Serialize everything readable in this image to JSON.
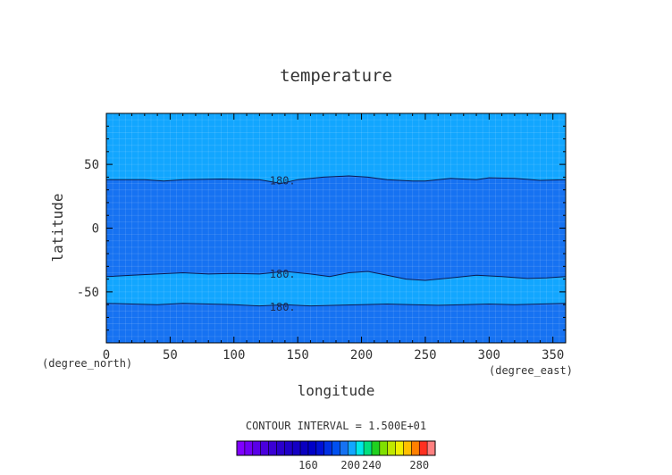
{
  "chart_data": {
    "type": "heatmap",
    "title": "temperature",
    "xlabel": "longitude",
    "ylabel": "latitude",
    "x_unit": "(degree_east)",
    "y_unit": "(degree_north)",
    "xlim": [
      0,
      360
    ],
    "ylim": [
      -90,
      90
    ],
    "x_ticks": [
      "0",
      "50",
      "100",
      "150",
      "200",
      "250",
      "300",
      "350"
    ],
    "y_ticks": [
      "50",
      "0",
      "-50"
    ],
    "x_tick_values": [
      0,
      50,
      100,
      150,
      200,
      250,
      300,
      350
    ],
    "y_tick_values": [
      50,
      0,
      -50
    ],
    "grid": true,
    "contour_interval_text": "CONTOUR INTERVAL = 1.500E+01",
    "contour_label": "180.",
    "bands": [
      {
        "from": "north_edge",
        "to": "contour_north",
        "color": "#12a6ff",
        "range": "195-210"
      },
      {
        "from": "contour_north",
        "to": "contour_mid",
        "color": "#1672f2",
        "range": "180-195"
      },
      {
        "from": "contour_mid",
        "to": "contour_south",
        "color": "#12a6ff",
        "range": "195-210"
      },
      {
        "from": "contour_south",
        "to": "south_edge",
        "color": "#1672f2",
        "range": "180-195"
      }
    ],
    "contours": [
      {
        "name": "contour_north",
        "level": 180,
        "lon": [
          0,
          30,
          45,
          60,
          90,
          120,
          137,
          150,
          170,
          190,
          205,
          220,
          240,
          250,
          270,
          290,
          300,
          320,
          340,
          360
        ],
        "lat": [
          38,
          38,
          37,
          38,
          38.5,
          38,
          35,
          38,
          40,
          41,
          40,
          38,
          37,
          37,
          39,
          38,
          39.5,
          39,
          37.5,
          38
        ]
      },
      {
        "name": "contour_mid",
        "level": 180,
        "lon": [
          0,
          20,
          40,
          60,
          80,
          100,
          120,
          140,
          160,
          175,
          190,
          205,
          220,
          235,
          250,
          270,
          290,
          310,
          330,
          345,
          360
        ],
        "lat": [
          -38,
          -37,
          -36,
          -35,
          -36,
          -35.5,
          -36,
          -34,
          -36,
          -38,
          -35,
          -34,
          -37,
          -40,
          -41,
          -39,
          -37,
          -38,
          -39.5,
          -39,
          -38
        ]
      },
      {
        "name": "contour_south",
        "level": 180,
        "lon": [
          0,
          20,
          40,
          60,
          80,
          100,
          120,
          140,
          160,
          180,
          200,
          220,
          240,
          260,
          280,
          300,
          320,
          340,
          360
        ],
        "lat": [
          -59,
          -59.5,
          -60,
          -59,
          -59.5,
          -60,
          -61,
          -60,
          -61,
          -60.5,
          -60,
          -59.5,
          -60,
          -60.5,
          -60,
          -59.5,
          -60,
          -59.5,
          -59
        ]
      }
    ],
    "contour_labels_at": [
      {
        "lon": 128,
        "lat": 37
      },
      {
        "lon": 128,
        "lat": -36
      },
      {
        "lon": 128,
        "lat": -62
      }
    ],
    "colorbar": {
      "ticks": [
        "160",
        "200",
        "240",
        "280"
      ],
      "tick_values": [
        160,
        200,
        240,
        280
      ],
      "min": 137.5,
      "max": 295,
      "boundaries": [
        137.5,
        140,
        142.5,
        145,
        147.5,
        150,
        152.5,
        155,
        157.5,
        160,
        165,
        170,
        175,
        180,
        195,
        210,
        225,
        240,
        250,
        260,
        265,
        270,
        275,
        280,
        285,
        295
      ],
      "colors": [
        "#8000ff",
        "#7000f5",
        "#5a00e8",
        "#4a00dd",
        "#3a00d5",
        "#2a00cc",
        "#1f00c8",
        "#1400c4",
        "#0a00c0",
        "#0000c8",
        "#0010d6",
        "#0030e4",
        "#0050f0",
        "#1672f2",
        "#12a6ff",
        "#00e8e8",
        "#00e080",
        "#20d020",
        "#80e000",
        "#c0e800",
        "#f0f000",
        "#ffc000",
        "#ff8000",
        "#ff3020",
        "#ff8080"
      ]
    }
  }
}
